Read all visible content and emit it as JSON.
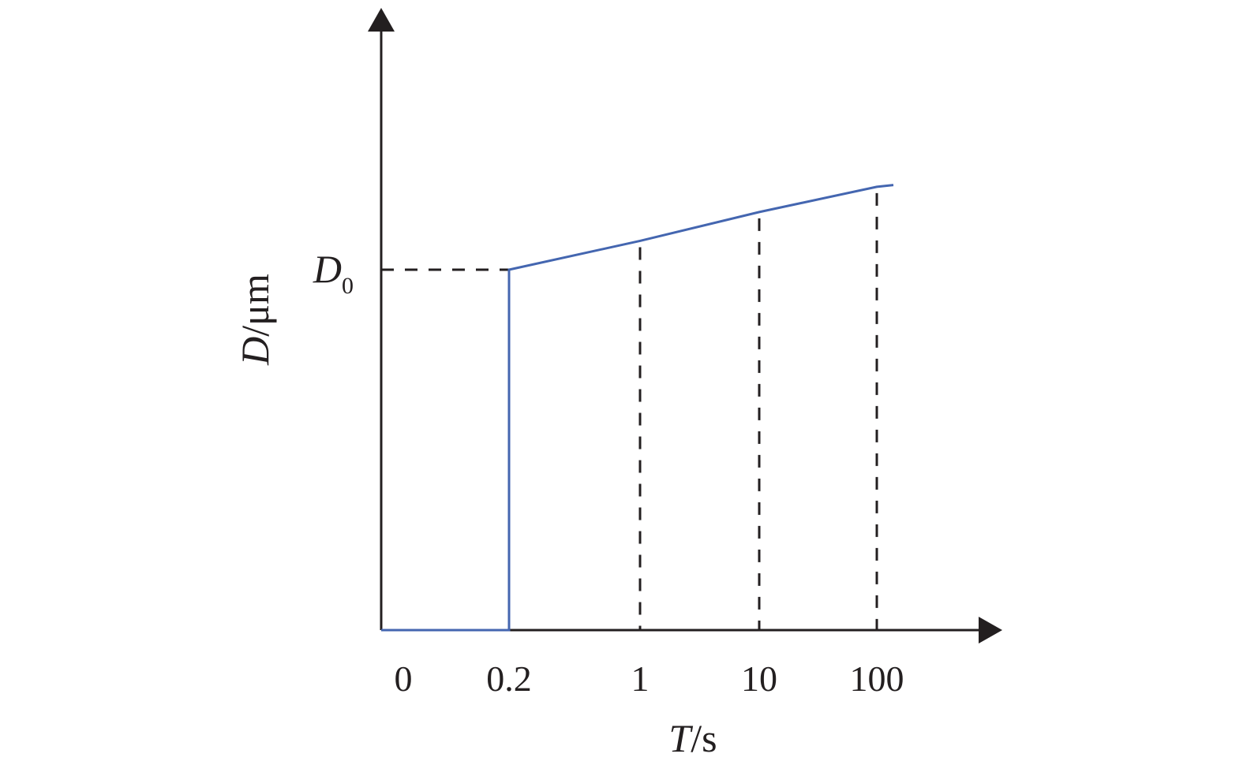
{
  "chart_data": {
    "type": "line",
    "x_tick_labels": [
      "0",
      "0.2",
      "1",
      "10",
      "100"
    ],
    "x_tick_values": [
      0,
      0.2,
      1,
      10,
      100
    ],
    "xlabel": {
      "var": "T",
      "unit": "/s"
    },
    "ylabel": {
      "var": "D",
      "unit": "/μm"
    },
    "y_marker": {
      "var": "D",
      "sub": "0",
      "value": 1.0
    },
    "grid": false,
    "series": [
      {
        "points": [
          {
            "x": "0",
            "y": 0
          },
          {
            "x": "0.2",
            "y": 0
          },
          {
            "x": "0.2",
            "y": 1.0
          },
          {
            "x": "1",
            "y": 1.08
          },
          {
            "x": "10",
            "y": 1.16
          },
          {
            "x": "100",
            "y": 1.23
          },
          {
            "x": ">100",
            "y": 1.235
          }
        ]
      }
    ],
    "reference_lines": [
      {
        "kind": "horizontal-dashed",
        "at_y": 1.0,
        "from_x": "0",
        "to_x": "0.2"
      },
      {
        "kind": "vertical-dashed",
        "at_x": "1"
      },
      {
        "kind": "vertical-dashed",
        "at_x": "10"
      },
      {
        "kind": "vertical-dashed",
        "at_x": "100"
      }
    ],
    "colors": {
      "series": "#4466b0",
      "axis": "#231f20",
      "dash": "#231f20"
    }
  }
}
